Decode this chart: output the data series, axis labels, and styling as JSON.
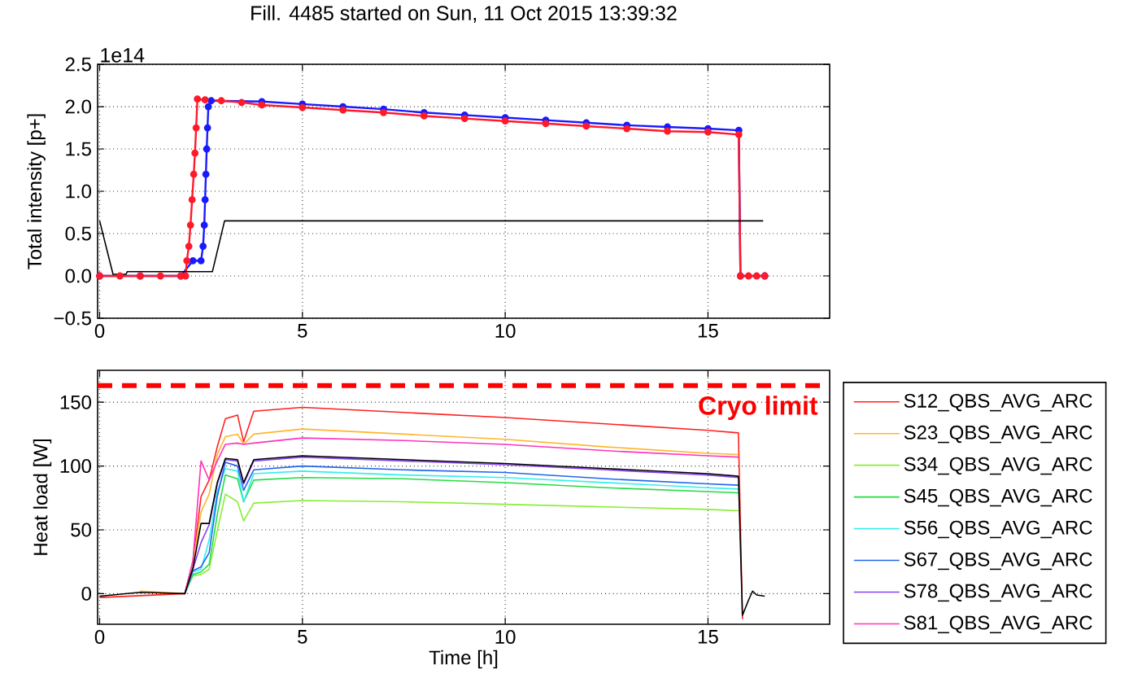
{
  "chart_data": [
    {
      "type": "line",
      "title": "Fill. 4485 started on Sun, 11 Oct 2015 13:39:32",
      "ylabel": "Total intensity [p+]",
      "annotations": [
        "1e14"
      ],
      "xlim": [
        -0.05,
        18
      ],
      "xticks": [
        0,
        5,
        10,
        15
      ],
      "ylim": [
        -0.5,
        2.5
      ],
      "yticks": [
        {
          "value": -0.5,
          "label": "−0.5"
        },
        {
          "value": 0.0,
          "label": "0.0"
        },
        {
          "value": 0.5,
          "label": "0.5"
        },
        {
          "value": 1.0,
          "label": "1.0"
        },
        {
          "value": 1.5,
          "label": "1.5"
        },
        {
          "value": 2.0,
          "label": "2.0"
        },
        {
          "value": 2.5,
          "label": "2.5"
        }
      ],
      "grid": true,
      "marker": "circle",
      "series": [
        {
          "color": "#1a1aff",
          "x": [
            0,
            1,
            2,
            2.3,
            2.5,
            2.55,
            2.58,
            2.6,
            2.62,
            2.64,
            2.66,
            2.68,
            2.75,
            4,
            5,
            6,
            7,
            8,
            9,
            10,
            11,
            12,
            13,
            14,
            15,
            15.76,
            15.8,
            16.4
          ],
          "values": [
            0,
            0,
            0,
            0.18,
            0.18,
            0.35,
            0.6,
            0.9,
            1.2,
            1.5,
            1.75,
            2.0,
            2.07,
            2.06,
            2.03,
            2.0,
            1.97,
            1.93,
            1.9,
            1.87,
            1.84,
            1.81,
            1.78,
            1.76,
            1.74,
            1.72,
            0,
            0
          ]
        },
        {
          "color": "#ff1a2a",
          "x": [
            0,
            0.5,
            1,
            1.5,
            2,
            2.12,
            2.15,
            2.2,
            2.24,
            2.28,
            2.32,
            2.35,
            2.38,
            2.41,
            2.6,
            3,
            3.5,
            4,
            5,
            6,
            7,
            8,
            9,
            10,
            11,
            12,
            13,
            14,
            15,
            15.76,
            15.8,
            16,
            16.2,
            16.4
          ],
          "values": [
            0,
            0,
            0,
            0,
            0,
            0,
            0.18,
            0.35,
            0.6,
            0.9,
            1.2,
            1.45,
            1.75,
            2.09,
            2.08,
            2.07,
            2.05,
            2.02,
            1.99,
            1.96,
            1.93,
            1.89,
            1.86,
            1.83,
            1.8,
            1.77,
            1.74,
            1.71,
            1.7,
            1.67,
            0,
            0,
            0,
            0
          ]
        },
        {
          "color": "#000000",
          "marker": "none",
          "x": [
            0,
            0.33,
            0.65,
            0.68,
            2.78,
            3.08,
            16.36
          ],
          "values": [
            0.65,
            0.02,
            0.02,
            0.05,
            0.05,
            0.65,
            0.65
          ]
        }
      ]
    },
    {
      "type": "line",
      "xlabel": "Time [h]",
      "ylabel": "Heat load [W]",
      "xlim": [
        -0.05,
        18
      ],
      "xticks": [
        0,
        5,
        10,
        15
      ],
      "ylim": [
        -24,
        175
      ],
      "yticks": [
        0,
        50,
        100,
        150
      ],
      "grid": true,
      "legend": "right",
      "ref_lines": [
        {
          "axis": "y",
          "value": 163,
          "label": "Cryo limit",
          "color": "#ff0000",
          "line_style": "dashed"
        }
      ],
      "series": [
        {
          "name": "S12_QBS_AVG_ARC",
          "color": "#ff2020",
          "x": [
            0,
            2.1,
            2.3,
            2.5,
            2.7,
            2.9,
            3.1,
            3.4,
            3.55,
            3.8,
            5,
            7.5,
            10,
            12.5,
            15,
            15.75,
            15.85
          ],
          "values": [
            -3,
            0,
            25,
            76,
            89,
            115,
            137,
            140,
            119,
            143,
            146,
            142,
            138,
            133,
            128,
            126,
            -20
          ]
        },
        {
          "name": "S23_QBS_AVG_ARC",
          "color": "#ffb52e",
          "x": [
            1,
            2.1,
            2.3,
            2.5,
            2.7,
            2.9,
            3.1,
            3.4,
            3.55,
            3.8,
            5,
            7.5,
            10,
            12.5,
            15,
            15.75
          ],
          "values": [
            2,
            0,
            24,
            64,
            78,
            109,
            123,
            125,
            117,
            125,
            129,
            125,
            121,
            115,
            110,
            109
          ]
        },
        {
          "name": "S34_QBS_AVG_ARC",
          "color": "#88ee33",
          "x": [
            2.1,
            2.3,
            2.5,
            2.7,
            2.9,
            3.1,
            3.4,
            3.55,
            3.8,
            5,
            7.5,
            10,
            12.5,
            15,
            15.75
          ],
          "values": [
            0,
            14,
            15,
            19,
            49,
            78,
            72,
            57,
            71,
            73,
            72,
            70,
            68,
            66,
            65
          ]
        },
        {
          "name": "S45_QBS_AVG_ARC",
          "color": "#22dd44",
          "x": [
            2.1,
            2.3,
            2.5,
            2.7,
            2.9,
            3.1,
            3.4,
            3.55,
            3.8,
            5,
            7.5,
            10,
            12.5,
            15,
            15.75
          ],
          "values": [
            0,
            15,
            17,
            23,
            62,
            93,
            90,
            72,
            89,
            91,
            90,
            87,
            83,
            80,
            79
          ]
        },
        {
          "name": "S56_QBS_AVG_ARC",
          "color": "#33eeee",
          "x": [
            2.1,
            2.3,
            2.5,
            2.7,
            2.9,
            3.1,
            3.4,
            3.55,
            3.8,
            5,
            7.5,
            10,
            12.5,
            15,
            15.75
          ],
          "values": [
            0,
            17,
            19,
            42,
            80,
            98,
            96,
            72,
            94,
            96,
            93,
            91,
            87,
            83,
            82
          ]
        },
        {
          "name": "S67_QBS_AVG_ARC",
          "color": "#2266ee",
          "x": [
            2.1,
            2.3,
            2.5,
            2.7,
            2.9,
            3.1,
            3.4,
            3.55,
            3.8,
            5,
            7.5,
            10,
            12.5,
            15,
            15.75
          ],
          "values": [
            0,
            18,
            21,
            32,
            76,
            103,
            100,
            81,
            97,
            100,
            97,
            95,
            90,
            86,
            85
          ]
        },
        {
          "name": "S78_QBS_AVG_ARC",
          "color": "#8844ee",
          "x": [
            2.1,
            2.3,
            2.5,
            2.7,
            2.9,
            3.1,
            3.4,
            3.55,
            3.8,
            5,
            7.5,
            10,
            12.5,
            15,
            15.75
          ],
          "values": [
            0,
            19,
            40,
            54,
            86,
            105,
            104,
            86,
            104,
            107,
            104,
            101,
            97,
            93,
            91
          ]
        },
        {
          "name": "S81_QBS_AVG_ARC",
          "color": "#ff33bb",
          "x": [
            2.1,
            2.3,
            2.5,
            2.7,
            2.9,
            3.1,
            3.4,
            3.55,
            3.8,
            5,
            7.5,
            10,
            12.5,
            15,
            15.75
          ],
          "values": [
            0,
            26,
            104,
            89,
            104,
            117,
            118,
            117,
            118,
            122,
            120,
            117,
            112,
            108,
            107
          ]
        },
        {
          "color": "#000000",
          "x": [
            0,
            1,
            2.1,
            2.3,
            2.5,
            2.7,
            2.9,
            3.1,
            3.4,
            3.55,
            3.8,
            5,
            7.5,
            10,
            12.5,
            15,
            15.75,
            15.85,
            16.0,
            16.1,
            16.2,
            16.4
          ],
          "values": [
            -2,
            1,
            0,
            20,
            55,
            55,
            87,
            106,
            105,
            87,
            105,
            108,
            105,
            102,
            98,
            94,
            92,
            -17,
            -5,
            2,
            -1,
            -2
          ]
        }
      ]
    }
  ]
}
